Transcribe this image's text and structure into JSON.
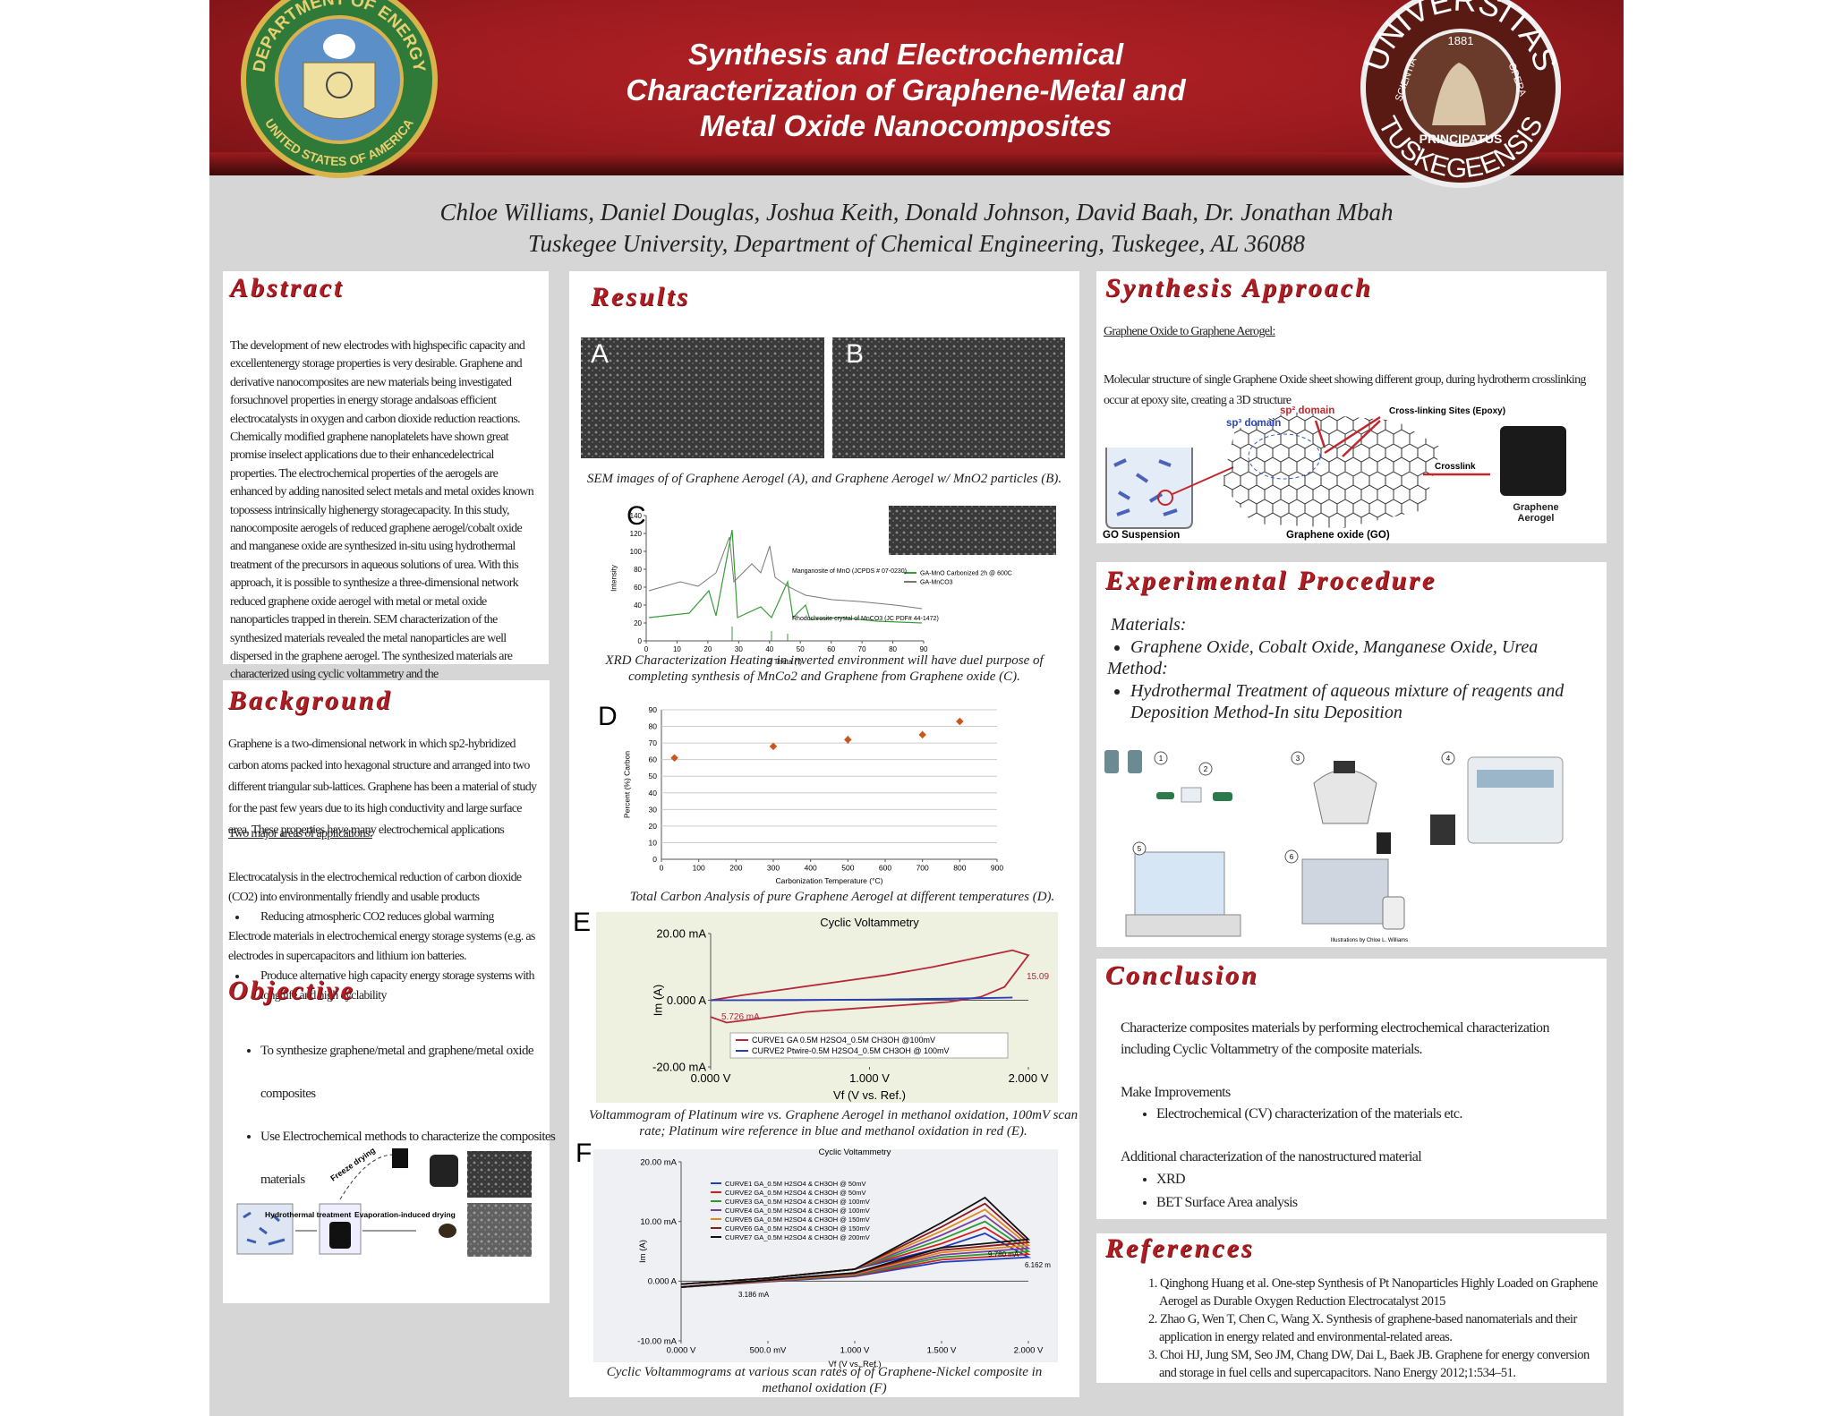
{
  "header": {
    "title": [
      "Synthesis and Electrochemical",
      "Characterization of Graphene-Metal and",
      "Metal Oxide Nanocomposites"
    ],
    "doe_seal": {
      "top": "DEPARTMENT OF ENERGY",
      "bottom": "UNITED STATES OF AMERICA"
    },
    "tuskegee_seal": {
      "top": "UNIVERSITAS",
      "bottom": "TUSKEGEENSIS",
      "left": "SCIENTIA",
      "right": "OPERA",
      "inner": "PRINCIPATUS",
      "year": "1881"
    },
    "authors": "Chloe Williams, Daniel Douglas, Joshua Keith, Donald  Johnson, David Baah, Dr. Jonathan Mbah",
    "affiliation": "Tuskegee University, Department of Chemical Engineering, Tuskegee, AL 36088"
  },
  "abstract": {
    "heading": "Abstract",
    "text": "The development of new electrodes with highspecific capacity and excellentenergy storage properties is very desirable. Graphene and derivative nanocomposites are new materials being investigated forsuchnovel properties in energy storage andalsoas efficient electrocatalysts in oxygen and carbon dioxide reduction reactions. Chemically modified graphene nanoplatelets have shown great promise inselect applications due to their enhancedelectrical properties. The electrochemical properties of the aerogels are enhanced by adding nanosited select metals and metal oxides known topossess intrinsically highenergy storagecapacity. In this study, nanocomposite aerogels of reduced graphene aerogel/cobalt oxide and manganese oxide are synthesized in-situ using hydrothermal treatment of the precursors in aqueous solutions of urea. With this approach, it is possible to synthesize a three-dimensional network reduced graphene oxide aerogel with metal or metal oxide nanoparticles trapped in therein. SEM characterization of the synthesized materials revealed the metal nanoparticles are well dispersed in the graphene aerogel. The synthesized materials are characterized using cyclic voltammetry and the electrochemicalproperties are discussed and  show that thehigher the carbonizationtemperature the higher the percent carbon will be in the sample."
  },
  "background": {
    "heading": "Background",
    "text": "Graphene is a two-dimensional network in which sp2-hybridized carbon atoms packed into hexagonal structure and arranged into two different triangular sub-lattices. Graphene has been a material of study for the past few years due to its high conductivity and large surface area. These properties have many electrochemical applications",
    "applications_heading": "Two major areas of applications:",
    "applications": [
      {
        "text": "Electrocatalysis in the electrochemical reduction of carbon dioxide (CO2) into environmentally friendly and usable products",
        "bullet": "Reducing atmospheric CO2 reduces global warming"
      },
      {
        "text": "Electrode materials in electrochemical energy storage systems (e.g. as electrodes in supercapacitors and lithium ion batteries.",
        "bullet": "Produce alternative high capacity energy storage systems with long life and high cyclability"
      }
    ]
  },
  "objective": {
    "heading": "Objective",
    "bullets": [
      "To synthesize graphene/metal and graphene/metal oxide composites",
      "Use Electrochemical methods to characterize the composites materials"
    ],
    "figure_labels": {
      "hydrothermal": "Hydrothermal treatment",
      "evaporation": "Evaporation-induced drying",
      "freeze": "Freeze drying"
    }
  },
  "results": {
    "heading": "Results",
    "sem": {
      "labels": [
        "A",
        "B"
      ],
      "caption": "SEM images of of Graphene Aerogel (A), and Graphene Aerogel w/ MnO2 particles (B)."
    },
    "C": {
      "label": "C",
      "type": "line",
      "caption": "XRD Characterization Heating in inverted environment will have duel purpose of completing synthesis of MnCo2 and Graphene from Graphene oxide (C).",
      "xlabel": "2 Theta (°)",
      "ylabel": "Intensity",
      "xlim": [
        0,
        90
      ],
      "xticks": [
        0,
        10,
        20,
        30,
        40,
        50,
        60,
        70,
        80,
        90
      ],
      "ylim": [
        0,
        140
      ],
      "yticks": [
        0,
        20,
        40,
        60,
        80,
        100,
        120,
        140
      ],
      "legend": [
        "GA-MnO Carbonized 2h @ 600C",
        "GA-MnCO3"
      ],
      "notes": [
        "Manganosite of MnO (JCPDS # 07-0230)",
        "Rhodochrosite crystal of MnCO3 (JC PDF# 44-1472)"
      ]
    },
    "D": {
      "label": "D",
      "type": "scatter",
      "caption": "Total Carbon Analysis of pure Graphene Aerogel at different temperatures (D).",
      "xlabel": "Carbonization Temperature (°C)",
      "ylabel": "Percent (%) Carbon",
      "xlim": [
        0,
        900
      ],
      "xticks": [
        0,
        100,
        200,
        300,
        400,
        500,
        600,
        700,
        800,
        900
      ],
      "ylim": [
        0,
        90
      ],
      "yticks": [
        0,
        10,
        20,
        30,
        40,
        50,
        60,
        70,
        80,
        90
      ],
      "grid": true,
      "color": "#c8561e",
      "x": [
        35,
        300,
        500,
        700,
        800
      ],
      "values": [
        61,
        68,
        72,
        75,
        83
      ],
      "errors": [
        1.5,
        1.5,
        2.5,
        1.5,
        2
      ]
    },
    "E": {
      "label": "E",
      "type": "line",
      "title": "Cyclic Voltammetry",
      "caption": "Voltammogram of Platinum wire vs. Graphene Aerogel in methanol oxidation, 100mV scan rate; Platinum wire reference in blue and methanol oxidation in red (E).",
      "xlabel": "Vf (V vs. Ref.)",
      "ylabel": "Im (A)",
      "xlim": [
        0,
        2
      ],
      "xticks": [
        {
          "value": 0,
          "label": "0.000 V"
        },
        {
          "value": 1,
          "label": "1.000 V"
        },
        {
          "value": 2,
          "label": "2.000 V"
        }
      ],
      "ylim": [
        -20,
        20
      ],
      "yticks": [
        {
          "value": -20,
          "label": "-20.00 mA"
        },
        {
          "value": 0,
          "label": "0.000 A"
        },
        {
          "value": 20,
          "label": "20.00 mA"
        }
      ],
      "annotations": [
        "15.09",
        "5.726 mA"
      ],
      "series": [
        {
          "name": "CURVE1 GA 0.5M H2SO4_0.5M CH3OH @100mV",
          "color": "#b5283a",
          "x": [
            0,
            0.1,
            0.3,
            0.6,
            0.9,
            1.2,
            1.5,
            1.7,
            1.85,
            2.0,
            1.9,
            1.7,
            1.4,
            1.1,
            0.8,
            0.5,
            0.2,
            0
          ],
          "values": [
            -5,
            -6.7,
            -5.5,
            -3.5,
            -2.5,
            -1.5,
            -0.5,
            1,
            4,
            13.5,
            15,
            13,
            10,
            7.5,
            5.5,
            3.5,
            1.5,
            0
          ]
        },
        {
          "name": "CURVE2 Ptwire-0.5M H2SO4_0.5M CH3OH @ 100mV",
          "color": "#2a3fb0",
          "x": [
            0,
            0.5,
            1.0,
            1.5,
            1.9,
            1.5,
            1.0,
            0.5,
            0
          ],
          "values": [
            0,
            0,
            0.2,
            0.5,
            0.8,
            0.4,
            0.2,
            0.1,
            0
          ]
        }
      ]
    },
    "F": {
      "label": "F",
      "type": "line",
      "title": "Cyclic Voltammetry",
      "caption": "Cyclic Voltammograms at various scan rates of of Graphene-Nickel composite  in methanol oxidation (F)",
      "xlabel": "Vf (V vs. Ref.)",
      "ylabel": "Im (A)",
      "xlim": [
        0,
        2
      ],
      "xticks": [
        {
          "value": 0,
          "label": "0.000 V"
        },
        {
          "value": 0.5,
          "label": "500.0 mV"
        },
        {
          "value": 1,
          "label": "1.000 V"
        },
        {
          "value": 1.5,
          "label": "1.500 V"
        },
        {
          "value": 2,
          "label": "2.000 V"
        }
      ],
      "ylim": [
        -10,
        20
      ],
      "yticks": [
        {
          "value": -10,
          "label": "-10.00 mA"
        },
        {
          "value": 0,
          "label": "0.000 A"
        },
        {
          "value": 10,
          "label": "10.00 mA"
        },
        {
          "value": 20,
          "label": "20.00 mA"
        }
      ],
      "annotations": [
        "9.780 mA",
        "6.162 m",
        "3.186 mA"
      ],
      "x": [
        0,
        0.5,
        1.0,
        1.5,
        1.75,
        2.0,
        1.5,
        1.0,
        0
      ],
      "series": [
        {
          "name": "CURVE1 GA_0.5M H2SO4 & CH3OH @ 50mV",
          "color": "#1f3fbf",
          "values": [
            -0.5,
            0.5,
            2,
            5.6,
            8,
            4,
            3.2,
            0.8,
            -1
          ]
        },
        {
          "name": "CURVE2 GA_0.5M H2SO4 & CH3OH @ 50mV",
          "color": "#d02020",
          "values": [
            -0.5,
            0.5,
            2,
            6.3,
            9,
            4.5,
            3.6,
            0.9,
            -1
          ]
        },
        {
          "name": "CURVE3 GA_0.5M H2SO4 & CH3OH @ 100mV",
          "color": "#2a9a2a",
          "values": [
            -0.5,
            0.5,
            2,
            7,
            10,
            5,
            4,
            1,
            -1
          ]
        },
        {
          "name": "CURVE4 GA_0.5M H2SO4 & CH3OH @ 100mV",
          "color": "#7a3fa0",
          "values": [
            -0.5,
            0.5,
            2,
            7.7,
            11,
            5.5,
            4.4,
            1.1,
            -1
          ]
        },
        {
          "name": "CURVE5 GA_0.5M H2SO4 & CH3OH @ 150mV",
          "color": "#e08a1e",
          "values": [
            -0.5,
            0.5,
            2,
            8.4,
            12,
            6,
            4.8,
            1.2,
            -1
          ]
        },
        {
          "name": "CURVE6 GA_0.5M H2SO4 & CH3OH @ 150mV",
          "color": "#8b1a1a",
          "values": [
            -0.5,
            0.5,
            2,
            9.1,
            13,
            6.5,
            5.2,
            1.3,
            -1
          ]
        },
        {
          "name": "CURVE7 GA_0.5M H2SO4 & CH3OH @ 200mV",
          "color": "#111111",
          "values": [
            -0.5,
            0.5,
            2,
            9.8,
            14,
            7,
            5.6,
            1.4,
            -1
          ]
        }
      ]
    }
  },
  "synthesis": {
    "heading": "Synthesis Approach",
    "subheading": "Graphene Oxide to Graphene Aerogel:",
    "text": "Molecular structure of single Graphene Oxide sheet showing different group, during hydrotherm crosslinking occur at epoxy site, creating a 3D structure",
    "labels": {
      "sp2": "sp² domain",
      "sp3": "sp³ domain",
      "crosslinking": "Cross-linking Sites (Epoxy)",
      "crosslink": "Crosslink",
      "suspension": "GO Suspension",
      "go": "Graphene oxide (GO)",
      "aerogel": "Graphene Aerogel"
    }
  },
  "experimental": {
    "heading": "Experimental Procedure",
    "materials_heading": "Materials:",
    "materials": "Graphene Oxide, Cobalt Oxide, Manganese Oxide, Urea",
    "method_heading": "Method:",
    "method": "Hydrothermal Treatment of aqueous mixture of reagents and Deposition Method-In situ Deposition",
    "steps": [
      "1",
      "2",
      "3",
      "4",
      "5",
      "6"
    ],
    "credit": "Illustrations by Chloe L. Williams"
  },
  "conclusion": {
    "heading": "Conclusion",
    "text": "Characterize composites materials by performing electrochemical characterization including Cyclic Voltammetry of the composite materials.",
    "improvements_heading": "Make Improvements",
    "improvements": [
      "Electrochemical (CV) characterization of the materials  etc."
    ],
    "additional_heading": "Additional characterization of the nanostructured material",
    "additional": [
      "XRD",
      "BET Surface Area analysis"
    ]
  },
  "references": {
    "heading": "References",
    "items": [
      "1. Qinghong Huang et al. One-step Synthesis of Pt Nanoparticles Highly Loaded on Graphene Aerogel as Durable Oxygen Reduction Electrocatalyst 2015",
      "2. Zhao G, Wen T, Chen C, Wang X. Synthesis of graphene-based nanomaterials and their application in energy related and environmental-related areas.",
      "3. Choi HJ, Jung SM, Seo JM, Chang DW, Dai L, Baek JB. Graphene for energy conversion and storage in fuel cells and supercapacitors. Nano Energy 2012;1:534–51."
    ]
  }
}
